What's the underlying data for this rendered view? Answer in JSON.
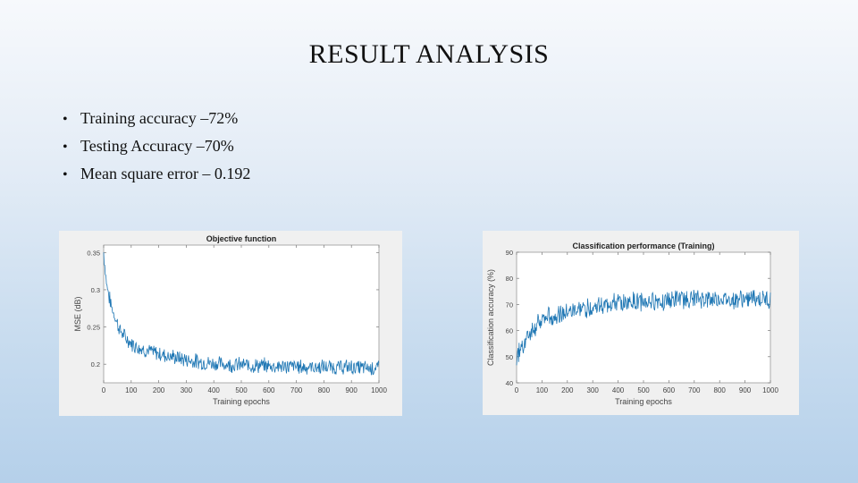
{
  "slide": {
    "title": "RESULT ANALYSIS",
    "bullets": [
      "Training accuracy –72%",
      "Testing Accuracy –70%",
      "Mean square error – 0.192"
    ]
  },
  "chart_data": [
    {
      "type": "line",
      "title": "Objective function",
      "xlabel": "Training epochs",
      "ylabel": "MSE (dB)",
      "xlim": [
        0,
        1000
      ],
      "ylim": [
        0.175,
        0.36
      ],
      "xticks": [
        0,
        100,
        200,
        300,
        400,
        500,
        600,
        700,
        800,
        900,
        1000
      ],
      "yticks": [
        0.2,
        0.25,
        0.3,
        0.35
      ],
      "color": "#1f77b4",
      "series": [
        {
          "x": [
            0,
            10,
            20,
            30,
            40,
            50,
            60,
            80,
            100,
            130,
            160,
            200,
            250,
            300,
            350,
            400,
            450,
            500,
            550,
            600,
            650,
            700,
            750,
            800,
            850,
            900,
            950,
            1000
          ],
          "values": [
            0.35,
            0.31,
            0.29,
            0.275,
            0.265,
            0.255,
            0.245,
            0.235,
            0.228,
            0.222,
            0.218,
            0.214,
            0.21,
            0.206,
            0.203,
            0.201,
            0.2,
            0.199,
            0.198,
            0.198,
            0.197,
            0.197,
            0.196,
            0.196,
            0.196,
            0.196,
            0.195,
            0.195
          ]
        }
      ]
    },
    {
      "type": "line",
      "title": "Classification performance (Training)",
      "xlabel": "Training epochs",
      "ylabel": "Classification accuracy (%)",
      "xlim": [
        0,
        1000
      ],
      "ylim": [
        40,
        90
      ],
      "xticks": [
        0,
        100,
        200,
        300,
        400,
        500,
        600,
        700,
        800,
        900,
        1000
      ],
      "yticks": [
        40,
        50,
        60,
        70,
        80,
        90
      ],
      "color": "#1f77b4",
      "series": [
        {
          "x": [
            0,
            10,
            20,
            40,
            60,
            80,
            100,
            150,
            200,
            250,
            300,
            350,
            400,
            450,
            500,
            550,
            600,
            650,
            700,
            750,
            800,
            850,
            900,
            950,
            1000
          ],
          "values": [
            50,
            52,
            54,
            57,
            60,
            62,
            64,
            66,
            67,
            68,
            69,
            70,
            70.5,
            71,
            71,
            71.5,
            71.5,
            72,
            72,
            72,
            72,
            72,
            72,
            72,
            72
          ]
        }
      ]
    }
  ]
}
